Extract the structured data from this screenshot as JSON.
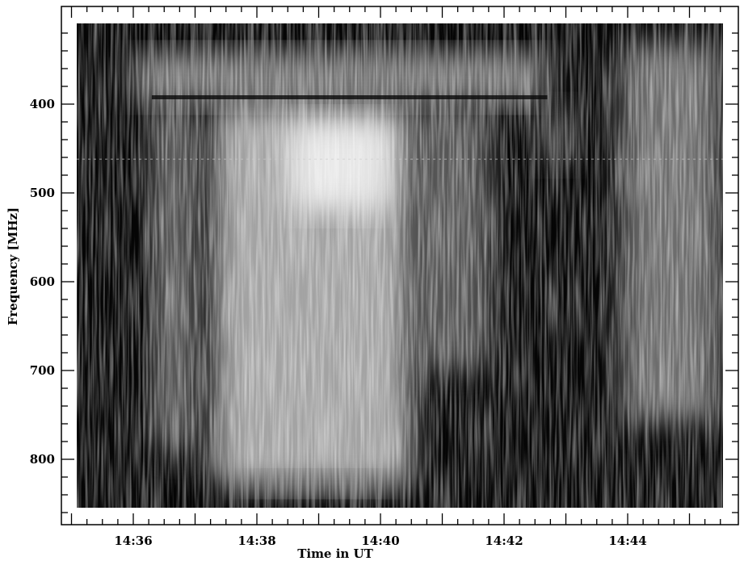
{
  "chart_data": {
    "type": "heatmap",
    "title": "",
    "xlabel": "Time in UT",
    "ylabel": "Frequency [MHz]",
    "x_ticks": [
      {
        "minute": 36,
        "label": "14:36"
      },
      {
        "minute": 38,
        "label": "14:38"
      },
      {
        "minute": 40,
        "label": "14:40"
      },
      {
        "minute": 42,
        "label": "14:42"
      },
      {
        "minute": 44,
        "label": "14:44"
      }
    ],
    "y_ticks": [
      {
        "value": 400,
        "label": "400"
      },
      {
        "value": 500,
        "label": "500"
      },
      {
        "value": 600,
        "label": "600"
      },
      {
        "value": 700,
        "label": "700"
      },
      {
        "value": 800,
        "label": "800"
      }
    ],
    "xlim_minutes": [
      35.0,
      45.7
    ],
    "ylim": [
      310,
      860
    ],
    "y_inverted": true,
    "colormap": "grayscale",
    "intensity_regions": [
      {
        "t_start": 36.0,
        "t_end": 42.7,
        "f_low": 340,
        "f_high": 400,
        "intensity": 0.55
      },
      {
        "t_start": 37.3,
        "t_end": 40.5,
        "f_low": 400,
        "f_high": 830,
        "intensity": 0.75
      },
      {
        "t_start": 38.5,
        "t_end": 40.2,
        "f_low": 420,
        "f_high": 520,
        "intensity": 0.95
      },
      {
        "t_start": 36.3,
        "t_end": 37.0,
        "f_low": 400,
        "f_high": 790,
        "intensity": 0.45
      },
      {
        "t_start": 40.5,
        "t_end": 41.8,
        "f_low": 400,
        "f_high": 700,
        "intensity": 0.4
      },
      {
        "t_start": 42.5,
        "t_end": 43.2,
        "f_low": 400,
        "f_high": 470,
        "intensity": 0.3
      },
      {
        "t_start": 43.9,
        "t_end": 45.5,
        "f_low": 330,
        "f_high": 760,
        "intensity": 0.5
      },
      {
        "t_start": 37.8,
        "t_end": 40.2,
        "f_low": 815,
        "f_high": 840,
        "intensity": 0.45
      }
    ]
  }
}
